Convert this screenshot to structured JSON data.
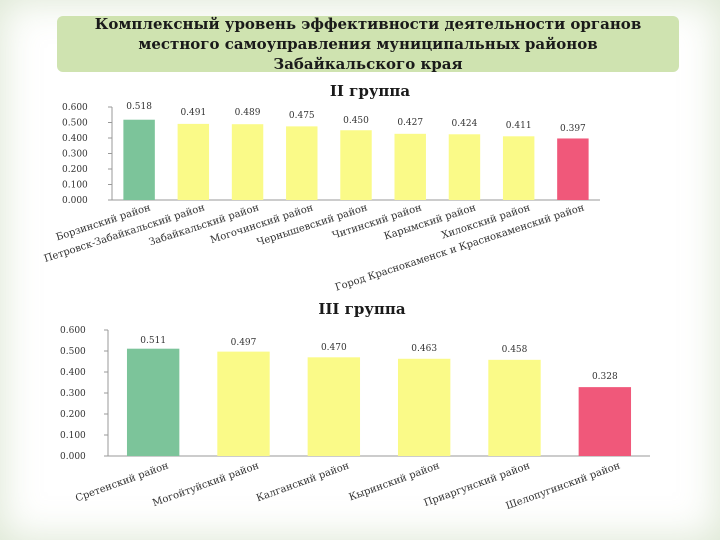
{
  "slide": {
    "title": "Комплексный уровень эффективности деятельности органов местного самоуправления муниципальных районов Забайкальского края"
  },
  "chart_data": [
    {
      "type": "bar",
      "title": "II группа",
      "categories": [
        "Борзинский район",
        "Петровск-Забайкальский район",
        "Забайкальский район",
        "Могочинский район",
        "Чернышевский район",
        "Читинский район",
        "Карымский район",
        "Хилокский район",
        "Город Краснокаменск и Краснокаменский район"
      ],
      "values": [
        0.518,
        0.491,
        0.489,
        0.475,
        0.45,
        0.427,
        0.424,
        0.411,
        0.397
      ],
      "value_labels": [
        "0.518",
        "0.491",
        "0.489",
        "0.475",
        "0.450",
        "0.427",
        "0.424",
        "0.411",
        "0.397"
      ],
      "colors": [
        "#7cc49a",
        "#fafa88",
        "#fafa88",
        "#fafa88",
        "#fafa88",
        "#fafa88",
        "#fafa88",
        "#fafa88",
        "#f0587a"
      ],
      "ylim": [
        0,
        0.6
      ],
      "yticks": [
        "0.000",
        "0.100",
        "0.200",
        "0.300",
        "0.400",
        "0.500",
        "0.600"
      ],
      "grid": false
    },
    {
      "type": "bar",
      "title": "III группа",
      "categories": [
        "Сретенский район",
        "Могойтуйский район",
        "Калганский район",
        "Кыринский район",
        "Приаргунский район",
        "Шелопугинский район"
      ],
      "values": [
        0.511,
        0.497,
        0.47,
        0.463,
        0.458,
        0.328
      ],
      "value_labels": [
        "0.511",
        "0.497",
        "0.470",
        "0.463",
        "0.458",
        "0.328"
      ],
      "colors": [
        "#7cc49a",
        "#fafa88",
        "#fafa88",
        "#fafa88",
        "#fafa88",
        "#f0587a"
      ],
      "ylim": [
        0,
        0.6
      ],
      "yticks": [
        "0.000",
        "0.100",
        "0.200",
        "0.300",
        "0.400",
        "0.500",
        "0.600"
      ],
      "grid": false
    }
  ]
}
